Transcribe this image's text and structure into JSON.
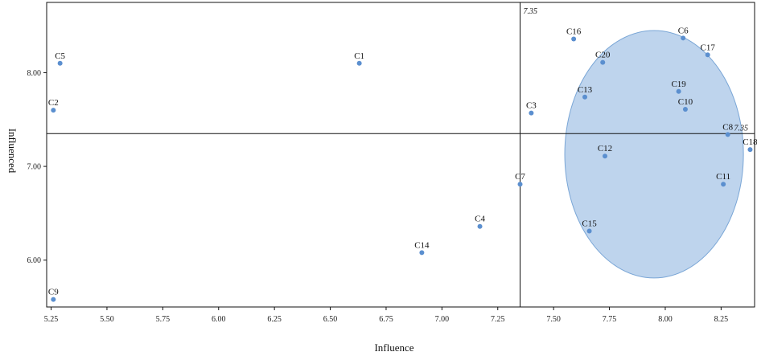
{
  "chart_data": {
    "type": "scatter",
    "xlabel": "Influence",
    "ylabel": "Influenced",
    "xlim": [
      5.23,
      8.4
    ],
    "ylim": [
      5.5,
      8.75
    ],
    "x_ticks": [
      "5.25",
      "5.50",
      "5.75",
      "6.00",
      "6.25",
      "6.50",
      "6.75",
      "7.00",
      "7.25",
      "7.50",
      "7.75",
      "8.00",
      "8.25"
    ],
    "x_tick_values": [
      5.25,
      5.5,
      5.75,
      6.0,
      6.25,
      6.5,
      6.75,
      7.0,
      7.25,
      7.5,
      7.75,
      8.0,
      8.25
    ],
    "y_ticks": [
      "6.00",
      "7.00",
      "8.00"
    ],
    "y_tick_values": [
      6.0,
      7.0,
      8.0
    ],
    "reference_lines": {
      "x": {
        "value": 7.35,
        "label": "7.35"
      },
      "y": {
        "value": 7.35,
        "label": "7.35"
      }
    },
    "highlight_ellipse": {
      "center": [
        7.95,
        7.13
      ],
      "radius_x": 0.4,
      "radius_y": 1.32,
      "color": "#b3cdea",
      "stroke": "#7aa6d6"
    },
    "point_color": "#5b8fcf",
    "points": [
      {
        "label": "C1",
        "x": 6.63,
        "y": 8.1
      },
      {
        "label": "C2",
        "x": 5.26,
        "y": 7.6
      },
      {
        "label": "C3",
        "x": 7.4,
        "y": 7.57
      },
      {
        "label": "C4",
        "x": 7.17,
        "y": 6.36
      },
      {
        "label": "C5",
        "x": 5.29,
        "y": 8.1
      },
      {
        "label": "C6",
        "x": 8.08,
        "y": 8.37
      },
      {
        "label": "C7",
        "x": 7.35,
        "y": 6.81
      },
      {
        "label": "C8",
        "x": 8.28,
        "y": 7.34
      },
      {
        "label": "C9",
        "x": 5.26,
        "y": 5.58
      },
      {
        "label": "C10",
        "x": 8.09,
        "y": 7.61
      },
      {
        "label": "C11",
        "x": 8.26,
        "y": 6.81
      },
      {
        "label": "C12",
        "x": 7.73,
        "y": 7.11
      },
      {
        "label": "C13",
        "x": 7.64,
        "y": 7.74
      },
      {
        "label": "C14",
        "x": 6.91,
        "y": 6.08
      },
      {
        "label": "C15",
        "x": 7.66,
        "y": 6.31
      },
      {
        "label": "C16",
        "x": 7.59,
        "y": 8.36
      },
      {
        "label": "C17",
        "x": 8.19,
        "y": 8.19
      },
      {
        "label": "C18",
        "x": 8.38,
        "y": 7.18
      },
      {
        "label": "C19",
        "x": 8.06,
        "y": 7.8
      },
      {
        "label": "C20",
        "x": 7.72,
        "y": 8.11
      }
    ]
  }
}
